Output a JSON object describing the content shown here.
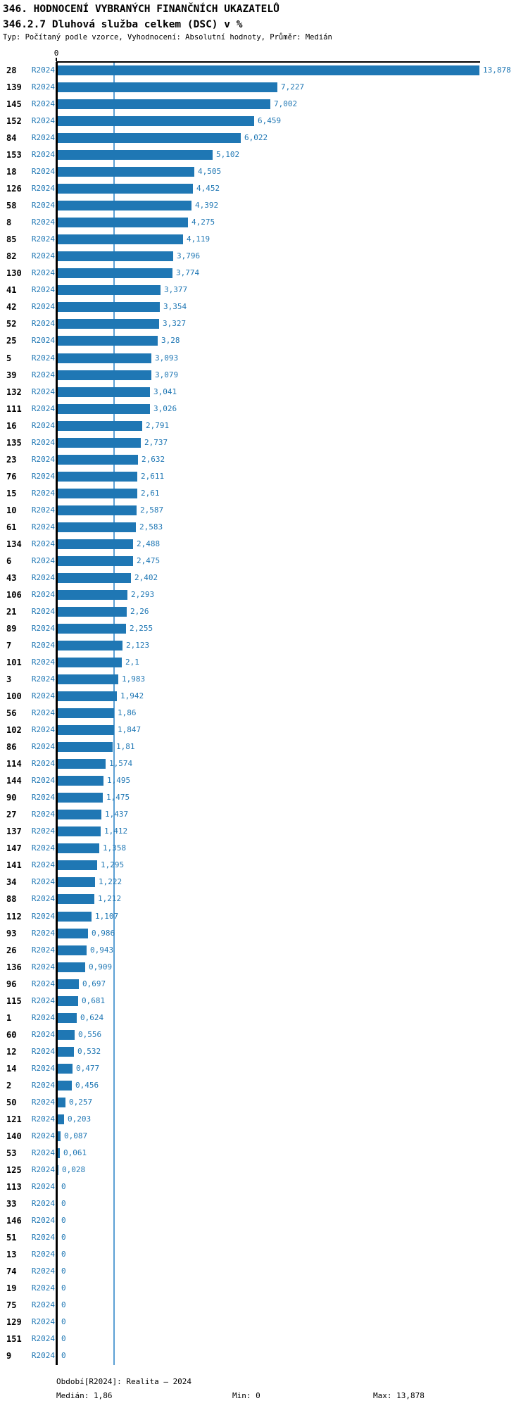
{
  "header": {
    "title": "346. HODNOCENÍ VYBRANÝCH FINANČNÍCH UKAZATELŮ",
    "subtitle": "346.2.7 Dluhová služba celkem (DSC) v %",
    "meta": "Typ: Počítaný podle vzorce, Vyhodnocení: Absolutní hodnoty, Průměr: Medián"
  },
  "chart_data": {
    "type": "bar",
    "orientation": "horizontal",
    "title": "346.2.7 Dluhová služba celkem (DSC) v %",
    "series_label": "R2024",
    "x_tick_labels": [
      "0"
    ],
    "xlim": [
      0,
      13.878
    ],
    "median_value": 1.86,
    "median_line": true,
    "decimal_separator": ",",
    "categories": [
      "28",
      "139",
      "145",
      "152",
      "84",
      "153",
      "18",
      "126",
      "58",
      "8",
      "85",
      "82",
      "130",
      "41",
      "42",
      "52",
      "25",
      "5",
      "39",
      "132",
      "111",
      "16",
      "135",
      "23",
      "76",
      "15",
      "10",
      "61",
      "134",
      "6",
      "43",
      "106",
      "21",
      "89",
      "7",
      "101",
      "3",
      "100",
      "56",
      "102",
      "86",
      "114",
      "144",
      "90",
      "27",
      "137",
      "147",
      "141",
      "34",
      "88",
      "112",
      "93",
      "26",
      "136",
      "96",
      "115",
      "1",
      "60",
      "12",
      "14",
      "2",
      "50",
      "121",
      "140",
      "53",
      "125",
      "113",
      "33",
      "146",
      "51",
      "13",
      "74",
      "19",
      "75",
      "129",
      "151",
      "9"
    ],
    "values": [
      13.878,
      7.227,
      7.002,
      6.459,
      6.022,
      5.102,
      4.505,
      4.452,
      4.392,
      4.275,
      4.119,
      3.796,
      3.774,
      3.377,
      3.354,
      3.327,
      3.28,
      3.093,
      3.079,
      3.041,
      3.026,
      2.791,
      2.737,
      2.632,
      2.611,
      2.61,
      2.587,
      2.583,
      2.488,
      2.475,
      2.402,
      2.293,
      2.26,
      2.255,
      2.123,
      2.1,
      1.983,
      1.942,
      1.86,
      1.847,
      1.81,
      1.574,
      1.495,
      1.475,
      1.437,
      1.412,
      1.358,
      1.295,
      1.222,
      1.212,
      1.107,
      0.986,
      0.943,
      0.909,
      0.697,
      0.681,
      0.624,
      0.556,
      0.532,
      0.477,
      0.456,
      0.257,
      0.203,
      0.087,
      0.061,
      0.028,
      0,
      0,
      0,
      0,
      0,
      0,
      0,
      0,
      0,
      0,
      0
    ],
    "colors": {
      "bar": "#1f77b4",
      "series_text": "#1f77b4",
      "value_text": "#1f77b4",
      "id_text": "#000000",
      "median_line": "#5b9fd4",
      "axis": "#000000"
    }
  },
  "footer": {
    "period": "Období[R2024]: Realita – 2024",
    "median": "Medián: 1,86",
    "min": "Min: 0",
    "max": "Max: 13,878"
  }
}
